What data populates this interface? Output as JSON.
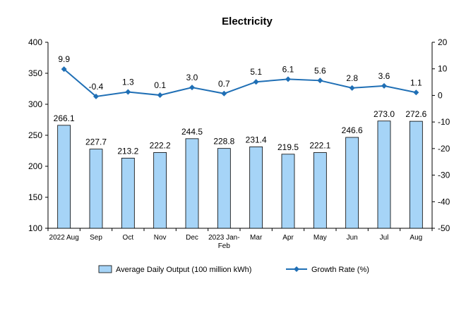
{
  "chart_data": {
    "type": "bar",
    "title": "Electricity",
    "categories": [
      "2022 Aug",
      "Sep",
      "Oct",
      "Nov",
      "Dec",
      "2023 Jan-Feb",
      "Mar",
      "Apr",
      "May",
      "Jun",
      "Jul",
      "Aug"
    ],
    "series": [
      {
        "name": "Average Daily Output (100 million kWh)",
        "type": "bar",
        "axis": "left",
        "color": "#a6d4f7",
        "values": [
          266.1,
          227.7,
          213.2,
          222.2,
          244.5,
          228.8,
          231.4,
          219.5,
          222.1,
          246.6,
          273.0,
          272.6
        ],
        "labels": [
          "266.1",
          "227.7",
          "213.2",
          "222.2",
          "244.5",
          "228.8",
          "231.4",
          "219.5",
          "222.1",
          "246.6",
          "273.0",
          "272.6"
        ]
      },
      {
        "name": "Growth Rate (%)",
        "type": "line",
        "axis": "right",
        "color": "#1f6fb5",
        "values": [
          9.9,
          -0.4,
          1.3,
          0.1,
          3.0,
          0.7,
          5.1,
          6.1,
          5.6,
          2.8,
          3.6,
          1.1
        ],
        "labels": [
          "9.9",
          "-0.4",
          "1.3",
          "0.1",
          "3.0",
          "0.7",
          "5.1",
          "6.1",
          "5.6",
          "2.8",
          "3.6",
          "1.1"
        ]
      }
    ],
    "y_left": {
      "range": [
        100,
        400
      ],
      "ticks": [
        "100",
        "150",
        "200",
        "250",
        "300",
        "350",
        "400"
      ]
    },
    "y_right": {
      "range": [
        -50,
        20
      ],
      "ticks": [
        "-50",
        "-40",
        "-30",
        "-20",
        "-10",
        "0",
        "10",
        "20"
      ]
    },
    "grid": false,
    "legend_position": "bottom"
  }
}
